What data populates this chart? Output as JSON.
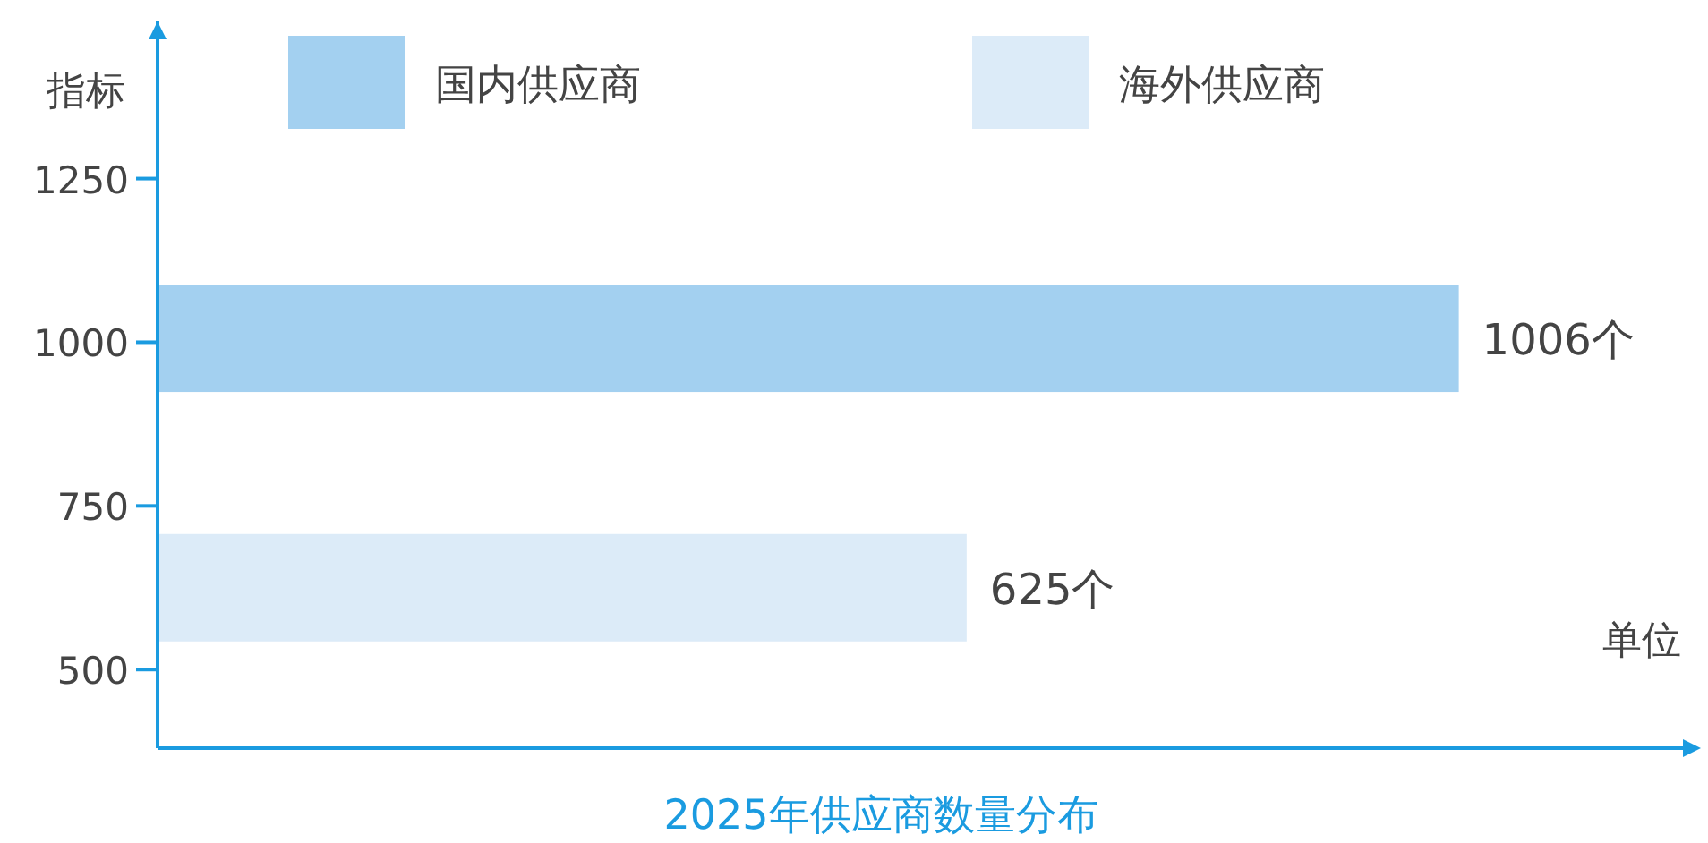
{
  "chart_data": {
    "type": "bar",
    "orientation": "horizontal",
    "title": "2025年供应商数量分布",
    "xlabel": "单位",
    "ylabel": "指标",
    "x": [
      1006,
      625
    ],
    "series": [
      {
        "name": "国内供应商",
        "color": "#a3d0f0",
        "values": [
          1006,
          null
        ],
        "value_labels": [
          "1006个",
          null
        ]
      },
      {
        "name": "海外供应商",
        "color": "#dcebf8",
        "values": [
          null,
          625
        ],
        "value_labels": [
          null,
          "625个"
        ]
      }
    ],
    "ylim": [
      380,
      1490
    ],
    "yticks": [
      500,
      750,
      1000,
      1250
    ],
    "legend": "top",
    "grid": false
  }
}
